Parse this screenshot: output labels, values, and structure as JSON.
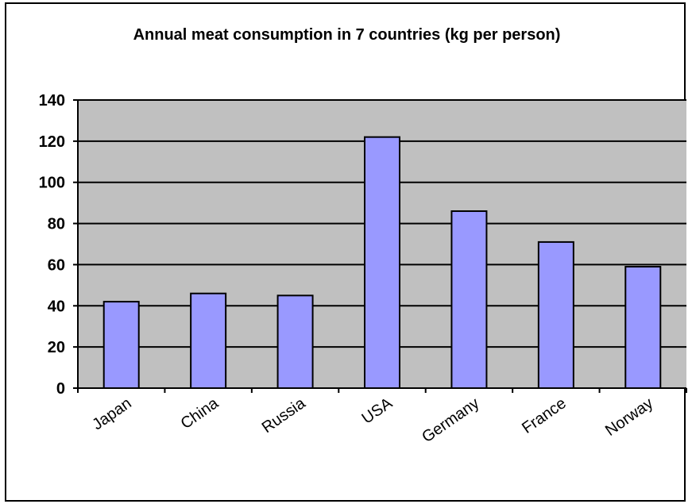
{
  "chart_data": {
    "type": "bar",
    "title": "Annual meat consumption in 7 countries (kg per person)",
    "categories": [
      "Japan",
      "China",
      "Russia",
      "USA",
      "Germany",
      "France",
      "Norway"
    ],
    "values": [
      42,
      46,
      45,
      122,
      86,
      71,
      59
    ],
    "xlabel": "",
    "ylabel": "",
    "ylim": [
      0,
      140
    ],
    "yticks": [
      0,
      20,
      40,
      60,
      80,
      100,
      120,
      140
    ],
    "grid": true,
    "legend": "none",
    "colors": {
      "bar": "#9999ff",
      "plot_background": "#c0c0c0",
      "gridline": "#000000",
      "axis": "#000000"
    }
  }
}
